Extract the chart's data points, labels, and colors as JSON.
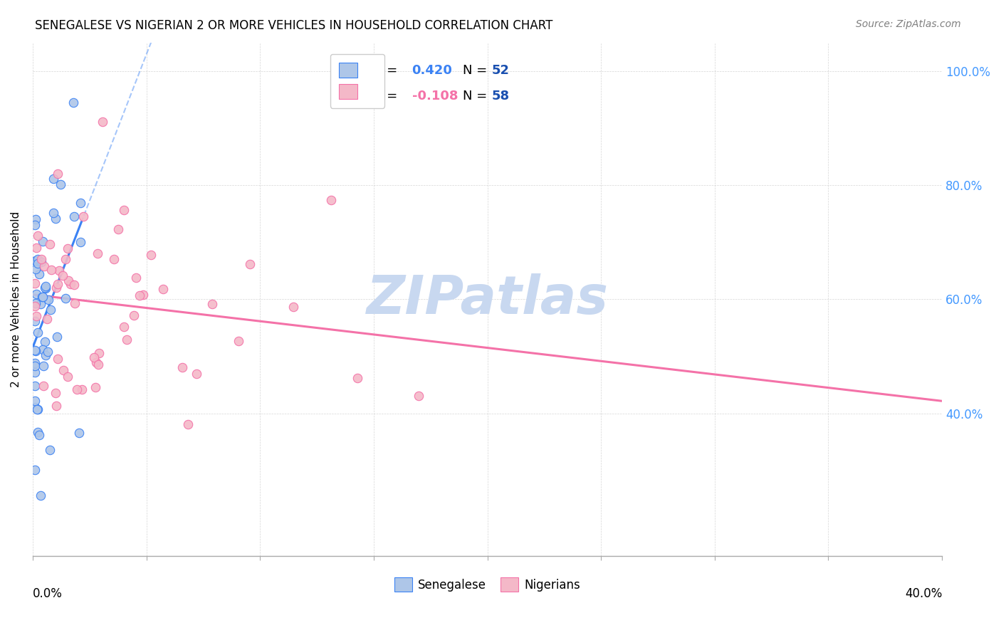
{
  "title": "SENEGALESE VS NIGERIAN 2 OR MORE VEHICLES IN HOUSEHOLD CORRELATION CHART",
  "source": "Source: ZipAtlas.com",
  "ylabel": "2 or more Vehicles in Household",
  "ytick_labels": [
    "100.0%",
    "80.0%",
    "60.0%",
    "40.0%"
  ],
  "ytick_values": [
    1.0,
    0.8,
    0.6,
    0.4
  ],
  "xlim": [
    0.0,
    0.4
  ],
  "ylim": [
    0.15,
    1.05
  ],
  "senegalese_color": "#aec6e8",
  "nigerian_color": "#f4b8c8",
  "senegalese_line_color": "#3b82f4",
  "nigerian_line_color": "#f472a8",
  "senegalese_R": 0.42,
  "senegalese_N": 52,
  "nigerian_R": -0.108,
  "nigerian_N": 58,
  "legend_R_color_blue": "#3b82f4",
  "legend_N_color_blue": "#1a50b0",
  "watermark": "ZIPatlas",
  "watermark_color": "#c8d8f0"
}
